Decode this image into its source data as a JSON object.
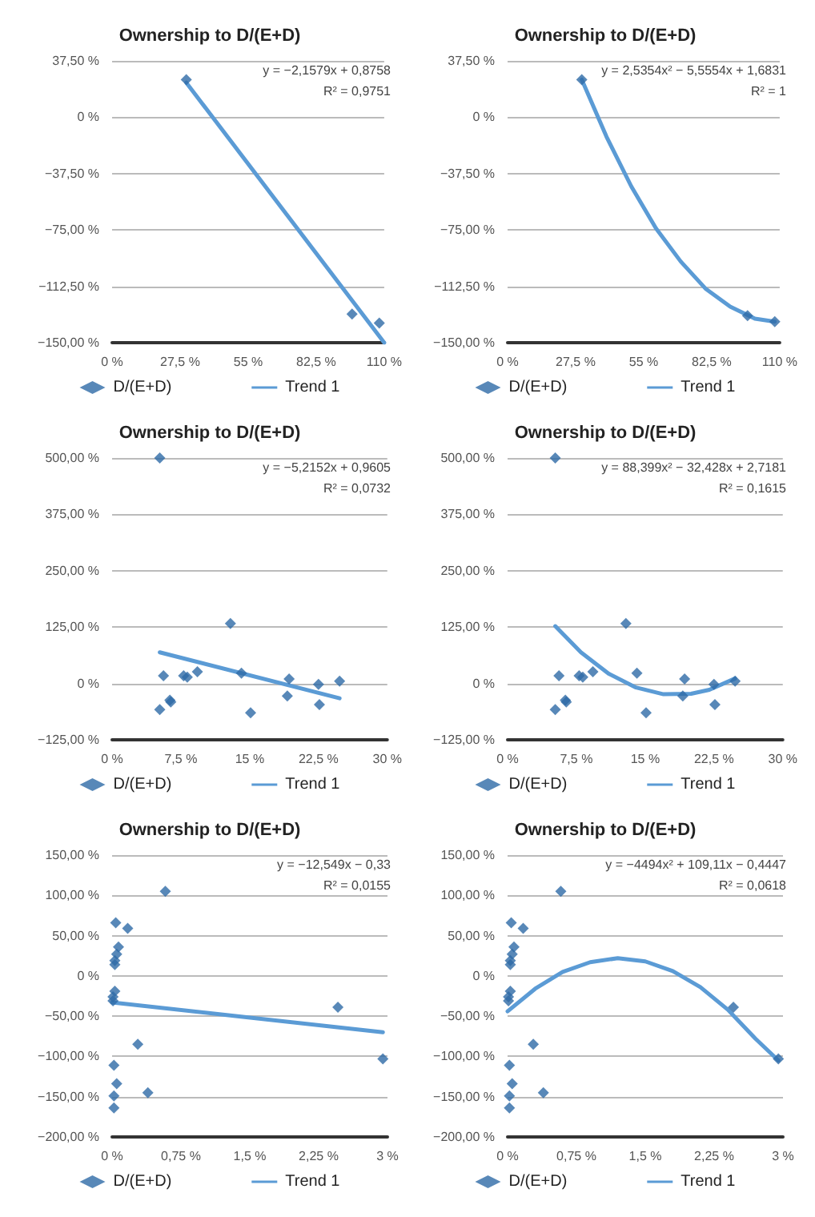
{
  "chart_data": [
    {
      "type": "scatter",
      "title": "Ownership to D/(E+D)",
      "xlim": [
        0,
        110
      ],
      "ylim": [
        -150,
        37.5
      ],
      "grid": "y",
      "legend": "bottom",
      "xticks": [
        {
          "value": 0,
          "label": "0 %"
        },
        {
          "value": 27.5,
          "label": "27,5 %"
        },
        {
          "value": 55,
          "label": "55 %"
        },
        {
          "value": 82.5,
          "label": "82,5 %"
        },
        {
          "value": 110,
          "label": "110 %"
        }
      ],
      "yticks": [
        {
          "value": -150,
          "label": "−150,00 %"
        },
        {
          "value": -112.5,
          "label": "−112,50 %"
        },
        {
          "value": -75,
          "label": "−75,00 %"
        },
        {
          "value": -37.5,
          "label": "−37,50 %"
        },
        {
          "value": 0,
          "label": "0 %"
        },
        {
          "value": 37.5,
          "label": "37,50 %"
        }
      ],
      "annotations": [
        "y = −2,1579x + 0,8758",
        "R² = 0,9751"
      ],
      "series": [
        {
          "name": "D/(E+D)",
          "marker": "diamond",
          "color": "#2e6aa6",
          "x": [
            30,
            97,
            108
          ],
          "values": [
            25,
            -131,
            -137
          ]
        },
        {
          "name": "Trend 1",
          "type": "line",
          "marker": "none",
          "color": "#5b9bd5",
          "x": [
            30,
            110
          ],
          "values": [
            23,
            -150
          ]
        }
      ]
    },
    {
      "type": "scatter",
      "title": "Ownership to D/(E+D)",
      "xlim": [
        0,
        110
      ],
      "ylim": [
        -150,
        37.5
      ],
      "grid": "y",
      "legend": "bottom",
      "xticks": [
        {
          "value": 0,
          "label": "0 %"
        },
        {
          "value": 27.5,
          "label": "27,5 %"
        },
        {
          "value": 55,
          "label": "55 %"
        },
        {
          "value": 82.5,
          "label": "82,5 %"
        },
        {
          "value": 110,
          "label": "110 %"
        }
      ],
      "yticks": [
        {
          "value": -150,
          "label": "−150,00 %"
        },
        {
          "value": -112.5,
          "label": "−112,50 %"
        },
        {
          "value": -75,
          "label": "−75,00 %"
        },
        {
          "value": -37.5,
          "label": "−37,50 %"
        },
        {
          "value": 0,
          "label": "0 %"
        },
        {
          "value": 37.5,
          "label": "37,50 %"
        }
      ],
      "annotations": [
        "y = 2,5354x² − 5,5554x + 1,6831",
        "R² = 1"
      ],
      "series": [
        {
          "name": "D/(E+D)",
          "marker": "diamond",
          "color": "#2e6aa6",
          "x": [
            30,
            97,
            108
          ],
          "values": [
            25,
            -132,
            -136
          ]
        },
        {
          "name": "Trend 1",
          "type": "line",
          "marker": "none",
          "color": "#5b9bd5",
          "x": [
            30,
            40,
            50,
            60,
            70,
            80,
            90,
            100,
            108
          ],
          "values": [
            25,
            -13,
            -46,
            -74,
            -96,
            -114,
            -126,
            -134,
            -136
          ]
        }
      ]
    },
    {
      "type": "scatter",
      "title": "Ownership to D/(E+D)",
      "xlim": [
        0,
        30
      ],
      "ylim": [
        -125,
        500
      ],
      "grid": "y",
      "legend": "bottom",
      "xticks": [
        {
          "value": 0,
          "label": "0 %"
        },
        {
          "value": 7.5,
          "label": "7,5 %"
        },
        {
          "value": 15,
          "label": "15 %"
        },
        {
          "value": 22.5,
          "label": "22,5 %"
        },
        {
          "value": 30,
          "label": "30 %"
        }
      ],
      "yticks": [
        {
          "value": -125,
          "label": "−125,00 %"
        },
        {
          "value": 0,
          "label": "0 %"
        },
        {
          "value": 125,
          "label": "125,00 %"
        },
        {
          "value": 250,
          "label": "250,00 %"
        },
        {
          "value": 375,
          "label": "375,00 %"
        },
        {
          "value": 500,
          "label": "500,00 %"
        }
      ],
      "annotations": [
        "y = −5,2152x + 0,9605",
        "R² = 0,0732"
      ],
      "series": [
        {
          "name": "D/(E+D)",
          "marker": "diamond",
          "color": "#2e6aa6",
          "x": [
            5.2,
            5.6,
            5.2,
            6.3,
            6.4,
            7.8,
            8.2,
            9.3,
            12.9,
            14.1,
            15.1,
            19.3,
            19.1,
            22.5,
            22.6,
            24.8
          ],
          "values": [
            500,
            17,
            -58,
            -37,
            -41,
            17,
            14,
            26,
            133,
            23,
            -65,
            10,
            -28,
            -2,
            -47,
            5
          ]
        },
        {
          "name": "Trend 1",
          "type": "line",
          "marker": "none",
          "color": "#5b9bd5",
          "x": [
            5.2,
            24.8
          ],
          "values": [
            69,
            -33
          ]
        }
      ]
    },
    {
      "type": "scatter",
      "title": "Ownership to D/(E+D)",
      "xlim": [
        0,
        30
      ],
      "ylim": [
        -125,
        500
      ],
      "grid": "y",
      "legend": "bottom",
      "xticks": [
        {
          "value": 0,
          "label": "0 %"
        },
        {
          "value": 7.5,
          "label": "7,5 %"
        },
        {
          "value": 15,
          "label": "15 %"
        },
        {
          "value": 22.5,
          "label": "22,5 %"
        },
        {
          "value": 30,
          "label": "30 %"
        }
      ],
      "yticks": [
        {
          "value": -125,
          "label": "−125,00 %"
        },
        {
          "value": 0,
          "label": "0 %"
        },
        {
          "value": 125,
          "label": "125,00 %"
        },
        {
          "value": 250,
          "label": "250,00 %"
        },
        {
          "value": 375,
          "label": "375,00 %"
        },
        {
          "value": 500,
          "label": "500,00 %"
        }
      ],
      "annotations": [
        "y = 88,399x² − 32,428x + 2,7181",
        "R² = 0,1615"
      ],
      "series": [
        {
          "name": "D/(E+D)",
          "marker": "diamond",
          "color": "#2e6aa6",
          "x": [
            5.2,
            5.6,
            5.2,
            6.3,
            6.4,
            7.8,
            8.2,
            9.3,
            12.9,
            14.1,
            15.1,
            19.3,
            19.1,
            22.5,
            22.6,
            24.8
          ],
          "values": [
            500,
            17,
            -58,
            -37,
            -41,
            17,
            14,
            26,
            133,
            23,
            -65,
            10,
            -28,
            -2,
            -47,
            5
          ]
        },
        {
          "name": "Trend 1",
          "type": "line",
          "marker": "none",
          "color": "#5b9bd5",
          "x": [
            5.2,
            8,
            11,
            14,
            17,
            20,
            22,
            24.8
          ],
          "values": [
            127,
            69,
            22,
            -9,
            -24,
            -23,
            -14,
            11
          ]
        }
      ]
    },
    {
      "type": "scatter",
      "title": "Ownership to D/(E+D)",
      "xlim": [
        0,
        3
      ],
      "ylim": [
        -200,
        150
      ],
      "grid": "y",
      "legend": "bottom",
      "xticks": [
        {
          "value": 0,
          "label": "0 %"
        },
        {
          "value": 0.75,
          "label": "0,75 %"
        },
        {
          "value": 1.5,
          "label": "1,5 %"
        },
        {
          "value": 2.25,
          "label": "2,25 %"
        },
        {
          "value": 3,
          "label": "3 %"
        }
      ],
      "yticks": [
        {
          "value": -200,
          "label": "−200,00 %"
        },
        {
          "value": -150,
          "label": "−150,00 %"
        },
        {
          "value": -100,
          "label": "−100,00 %"
        },
        {
          "value": -50,
          "label": "−50,00 %"
        },
        {
          "value": 0,
          "label": "0 %"
        },
        {
          "value": 50,
          "label": "50,00 %"
        },
        {
          "value": 100,
          "label": "100,00 %"
        },
        {
          "value": 150,
          "label": "150,00 %"
        }
      ],
      "annotations": [
        "y = −12,549x − 0,33",
        "R² = 0,0155"
      ],
      "series": [
        {
          "name": "D/(E+D)",
          "marker": "diamond",
          "color": "#2e6aa6",
          "x": [
            0.58,
            0.04,
            0.17,
            0.07,
            0.05,
            0.03,
            0.03,
            0.03,
            0.01,
            0.01,
            2.46,
            0.28,
            0.02,
            0.05,
            0.02,
            0.39,
            0.02,
            2.95
          ],
          "values": [
            105,
            66,
            59,
            36,
            27,
            19,
            14,
            -19,
            -26,
            -31,
            -39,
            -85,
            -111,
            -134,
            -149,
            -145,
            -164,
            -103
          ]
        },
        {
          "name": "Trend 1",
          "type": "line",
          "marker": "none",
          "color": "#5b9bd5",
          "x": [
            0,
            2.95
          ],
          "values": [
            -33,
            -70
          ]
        }
      ]
    },
    {
      "type": "scatter",
      "title": "Ownership to D/(E+D)",
      "xlim": [
        0,
        3
      ],
      "ylim": [
        -200,
        150
      ],
      "grid": "y",
      "legend": "bottom",
      "xticks": [
        {
          "value": 0,
          "label": "0 %"
        },
        {
          "value": 0.75,
          "label": "0,75 %"
        },
        {
          "value": 1.5,
          "label": "1,5 %"
        },
        {
          "value": 2.25,
          "label": "2,25 %"
        },
        {
          "value": 3,
          "label": "3 %"
        }
      ],
      "yticks": [
        {
          "value": -200,
          "label": "−200,00 %"
        },
        {
          "value": -150,
          "label": "−150,00 %"
        },
        {
          "value": -100,
          "label": "−100,00 %"
        },
        {
          "value": -50,
          "label": "−50,00 %"
        },
        {
          "value": 0,
          "label": "0 %"
        },
        {
          "value": 50,
          "label": "50,00 %"
        },
        {
          "value": 100,
          "label": "100,00 %"
        },
        {
          "value": 150,
          "label": "150,00 %"
        }
      ],
      "annotations": [
        "y = −4494x² + 109,11x − 0,4447",
        "R² = 0,0618"
      ],
      "series": [
        {
          "name": "D/(E+D)",
          "marker": "diamond",
          "color": "#2e6aa6",
          "x": [
            0.58,
            0.04,
            0.17,
            0.07,
            0.05,
            0.03,
            0.03,
            0.03,
            0.01,
            0.01,
            2.46,
            0.28,
            0.02,
            0.05,
            0.02,
            0.39,
            0.02,
            2.95
          ],
          "values": [
            105,
            66,
            59,
            36,
            27,
            19,
            14,
            -19,
            -26,
            -31,
            -39,
            -85,
            -111,
            -134,
            -149,
            -145,
            -164,
            -103
          ]
        },
        {
          "name": "Trend 1",
          "type": "line",
          "marker": "none",
          "color": "#5b9bd5",
          "x": [
            0,
            0.3,
            0.6,
            0.9,
            1.2,
            1.5,
            1.8,
            2.1,
            2.4,
            2.7,
            2.95
          ],
          "values": [
            -44,
            -16,
            5,
            17,
            22,
            18,
            6,
            -14,
            -42,
            -78,
            -105
          ]
        }
      ]
    }
  ]
}
